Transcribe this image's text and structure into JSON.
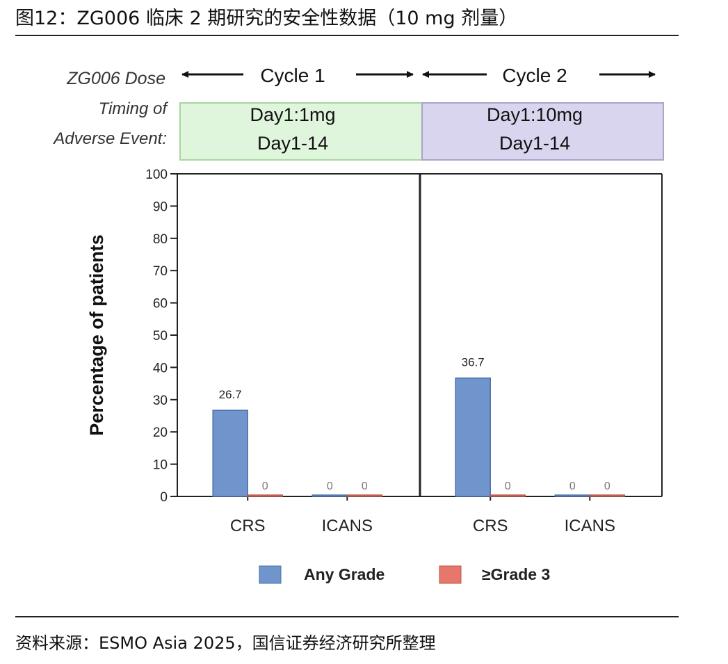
{
  "header": {
    "title": "图12：ZG006 临床 2 期研究的安全性数据（10 mg 剂量）"
  },
  "footer": {
    "source": "资料来源：ESMO Asia 2025，国信证券经济研究所整理"
  },
  "row_labels": {
    "dose": "ZG006 Dose",
    "timing_line1": "Timing of",
    "timing_line2": "Adverse Event:"
  },
  "colors": {
    "any_grade": "#7095cd",
    "grade3": "#e8776b",
    "cycle1_fill": "#dff5dc",
    "cycle1_border": "#a9d6a2",
    "cycle2_fill": "#d9d5ef",
    "cycle2_border": "#a9a5c9"
  },
  "chart_data": {
    "type": "bar",
    "ylabel": "Percentage of patients",
    "ylim": [
      0,
      100
    ],
    "yticks": [
      "0",
      "10",
      "20",
      "30",
      "40",
      "50",
      "60",
      "70",
      "80",
      "90",
      "100"
    ],
    "legend_position": "bottom",
    "legend": [
      "Any Grade",
      "≥Grade 3"
    ],
    "panels": [
      {
        "cycle": "Cycle 1",
        "dose_line1": "Day1:1mg",
        "dose_line2": "Day1-14",
        "categories": [
          "CRS",
          "ICANS"
        ],
        "series": [
          {
            "name": "Any Grade",
            "values": [
              26.7,
              0
            ],
            "labels": [
              "26.7",
              "0"
            ]
          },
          {
            "name": "≥Grade 3",
            "values": [
              0,
              0
            ],
            "labels": [
              "0",
              "0"
            ]
          }
        ]
      },
      {
        "cycle": "Cycle 2",
        "dose_line1": "Day1:10mg",
        "dose_line2": "Day1-14",
        "categories": [
          "CRS",
          "ICANS"
        ],
        "series": [
          {
            "name": "Any Grade",
            "values": [
              36.7,
              0
            ],
            "labels": [
              "36.7",
              "0"
            ]
          },
          {
            "name": "≥Grade 3",
            "values": [
              0,
              0
            ],
            "labels": [
              "0",
              "0"
            ]
          }
        ]
      }
    ]
  }
}
